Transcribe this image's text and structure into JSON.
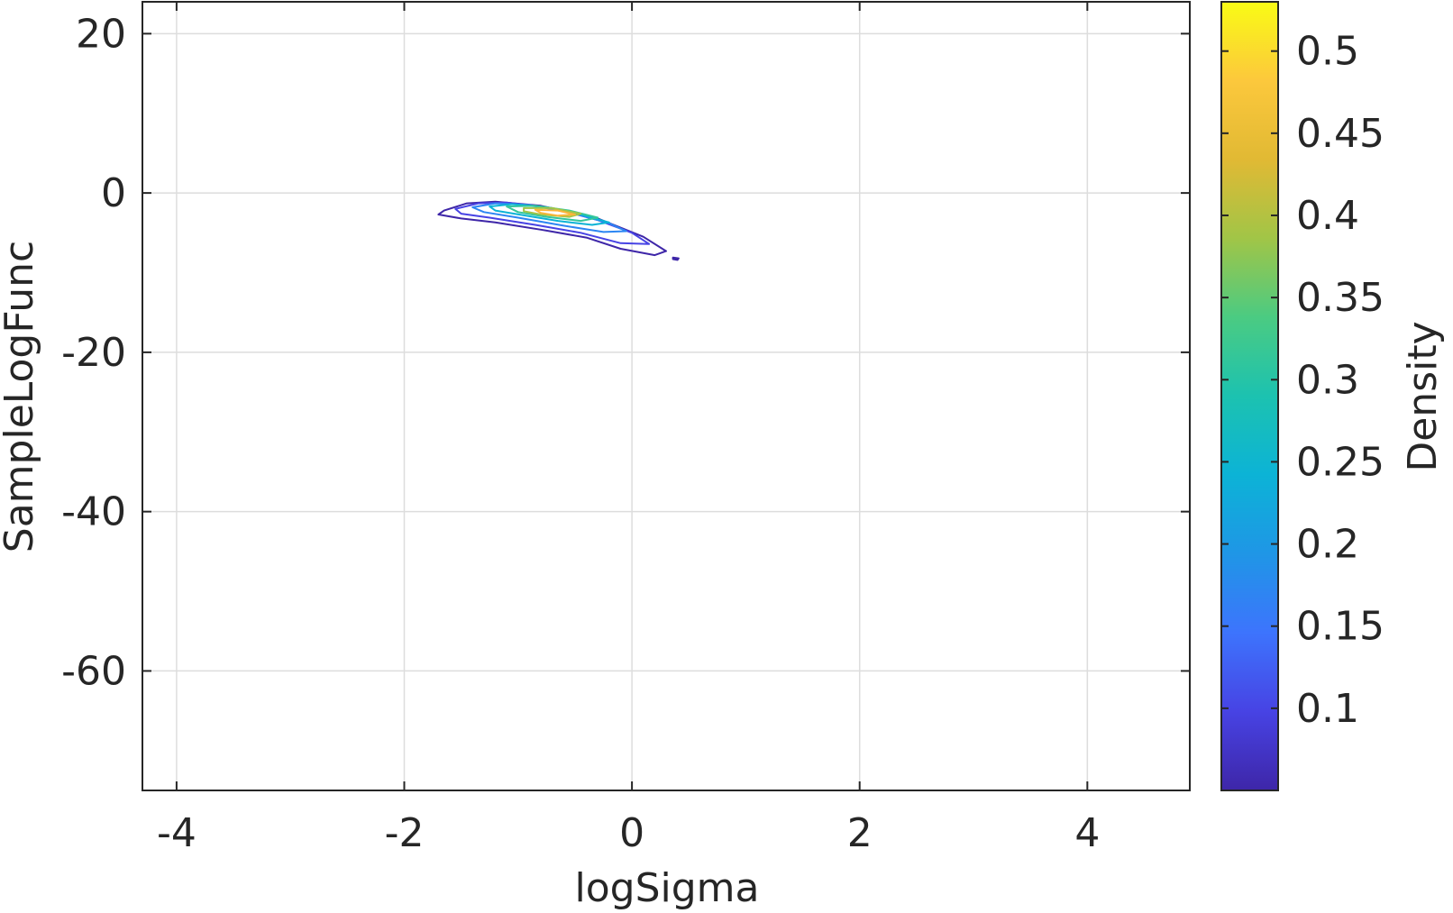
{
  "chart_data": {
    "type": "contour",
    "xlabel": "logSigma",
    "ylabel": "SampleLogFunc",
    "xlim": [
      -4.3,
      4.9
    ],
    "ylim": [
      -75,
      24
    ],
    "xticks": [
      -4,
      -2,
      0,
      2,
      4
    ],
    "xtick_labels": [
      "-4",
      "-2",
      "0",
      "2",
      "4"
    ],
    "yticks": [
      20,
      0,
      -20,
      -40,
      -60
    ],
    "ytick_labels": [
      "20",
      "0",
      "-20",
      "-40",
      "-60"
    ],
    "grid": true,
    "colorbar": {
      "label": "Density",
      "range": [
        0.05,
        0.53
      ],
      "ticks": [
        0.5,
        0.45,
        0.4,
        0.35,
        0.3,
        0.25,
        0.2,
        0.15,
        0.1
      ],
      "tick_labels": [
        "0.5",
        "0.45",
        "0.4",
        "0.35",
        "0.3",
        "0.25",
        "0.2",
        "0.15",
        "0.1"
      ],
      "colormap": "parula",
      "stops": [
        "#3e26a8",
        "#4743e4",
        "#3d74fd",
        "#1f96e6",
        "#0cb3d6",
        "#1cc2b0",
        "#4bcb82",
        "#a1c547",
        "#e1b934",
        "#fcc83c",
        "#f9fb15"
      ]
    },
    "contours": [
      {
        "level": 0.07,
        "color": "#3e26a8",
        "points": [
          [
            -1.65,
            -2.2
          ],
          [
            -1.45,
            -1.3
          ],
          [
            -1.2,
            -1.1
          ],
          [
            -0.8,
            -1.6
          ],
          [
            -0.3,
            -3.2
          ],
          [
            0.1,
            -5.5
          ],
          [
            0.3,
            -7.3
          ],
          [
            0.2,
            -7.8
          ],
          [
            -0.1,
            -7.0
          ],
          [
            -0.4,
            -5.6
          ],
          [
            -0.8,
            -4.6
          ],
          [
            -1.2,
            -3.7
          ],
          [
            -1.5,
            -3.2
          ],
          [
            -1.7,
            -2.7
          ]
        ]
      },
      {
        "level": 0.12,
        "color": "#4743e4",
        "points": [
          [
            -1.55,
            -2.0
          ],
          [
            -1.35,
            -1.3
          ],
          [
            -1.1,
            -1.2
          ],
          [
            -0.7,
            -1.9
          ],
          [
            -0.3,
            -3.4
          ],
          [
            0.0,
            -5.0
          ],
          [
            0.15,
            -6.4
          ],
          [
            -0.1,
            -6.3
          ],
          [
            -0.45,
            -5.0
          ],
          [
            -0.85,
            -4.0
          ],
          [
            -1.25,
            -3.1
          ],
          [
            -1.5,
            -2.6
          ]
        ]
      },
      {
        "level": 0.18,
        "color": "#2c86f3",
        "points": [
          [
            -1.4,
            -1.8
          ],
          [
            -1.2,
            -1.3
          ],
          [
            -0.9,
            -1.5
          ],
          [
            -0.5,
            -2.6
          ],
          [
            -0.2,
            -3.8
          ],
          [
            -0.05,
            -4.8
          ],
          [
            -0.25,
            -4.9
          ],
          [
            -0.6,
            -4.1
          ],
          [
            -1.0,
            -3.1
          ],
          [
            -1.3,
            -2.4
          ]
        ]
      },
      {
        "level": 0.25,
        "color": "#0cb3d6",
        "points": [
          [
            -1.25,
            -1.7
          ],
          [
            -1.05,
            -1.4
          ],
          [
            -0.75,
            -1.8
          ],
          [
            -0.45,
            -2.7
          ],
          [
            -0.2,
            -3.7
          ],
          [
            -0.35,
            -4.0
          ],
          [
            -0.65,
            -3.5
          ],
          [
            -0.95,
            -2.8
          ],
          [
            -1.2,
            -2.2
          ]
        ]
      },
      {
        "level": 0.33,
        "color": "#33c69b",
        "points": [
          [
            -1.1,
            -1.7
          ],
          [
            -0.85,
            -1.6
          ],
          [
            -0.55,
            -2.2
          ],
          [
            -0.3,
            -3.1
          ],
          [
            -0.45,
            -3.5
          ],
          [
            -0.75,
            -3.0
          ],
          [
            -1.0,
            -2.4
          ]
        ]
      },
      {
        "level": 0.4,
        "color": "#a1c547",
        "points": [
          [
            -0.95,
            -1.9
          ],
          [
            -0.7,
            -1.9
          ],
          [
            -0.45,
            -2.6
          ],
          [
            -0.55,
            -3.0
          ],
          [
            -0.8,
            -2.7
          ],
          [
            -0.95,
            -2.3
          ]
        ]
      },
      {
        "level": 0.47,
        "color": "#fcb53a",
        "points": [
          [
            -0.85,
            -2.1
          ],
          [
            -0.65,
            -2.2
          ],
          [
            -0.5,
            -2.7
          ],
          [
            -0.65,
            -2.85
          ],
          [
            -0.8,
            -2.5
          ]
        ]
      },
      {
        "level": 0.07,
        "color": "#3e26a8",
        "points": [
          [
            0.36,
            -8.1
          ],
          [
            0.41,
            -8.2
          ],
          [
            0.4,
            -8.4
          ],
          [
            0.36,
            -8.3
          ]
        ]
      }
    ]
  }
}
